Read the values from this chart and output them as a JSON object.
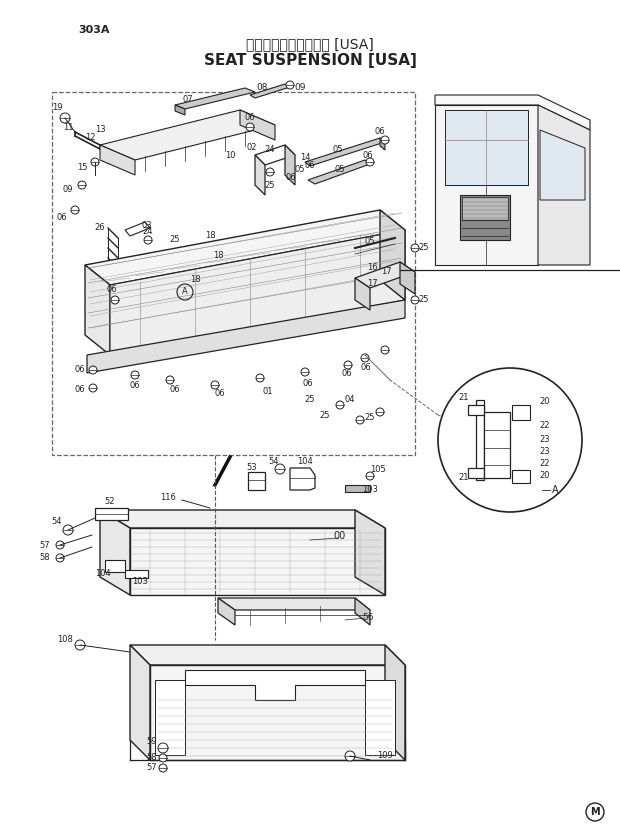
{
  "title_jp": "シートサスペンション [USA]",
  "title_en": "SEAT SUSPENSION [USA]",
  "page_code": "303A",
  "bg_color": "#ffffff",
  "lc": "#222222",
  "tc": "#222222",
  "gray": "#666666"
}
